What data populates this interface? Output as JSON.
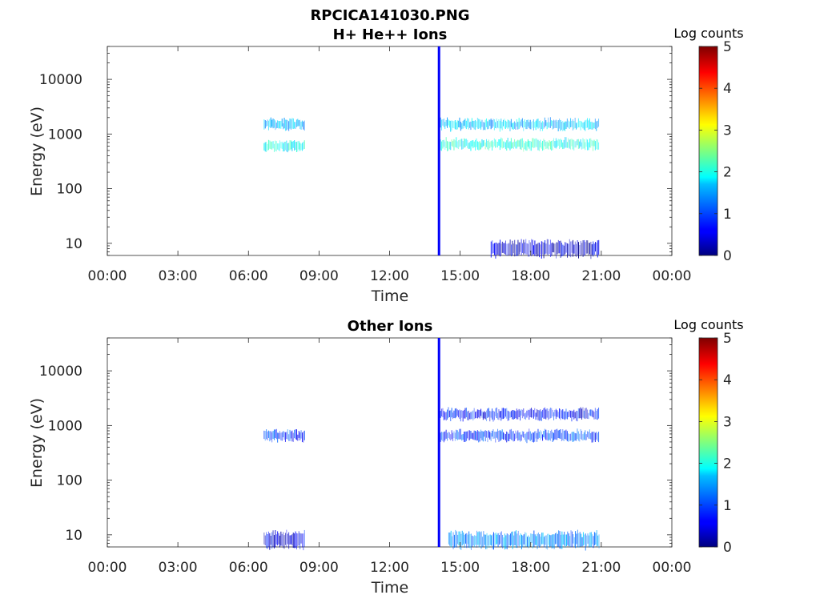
{
  "figure_title": "RPCICA141030.PNG",
  "panels": [
    {
      "id": "hplus",
      "title": "H+ He++ Ions",
      "ylabel": "Energy (eV)",
      "xlabel": "Time",
      "colorbar_label": "Log counts"
    },
    {
      "id": "other",
      "title": "Other Ions",
      "ylabel": "Energy (eV)",
      "xlabel": "Time",
      "colorbar_label": "Log counts"
    }
  ],
  "chart_data": [
    {
      "type": "heatmap",
      "title": "H+ He++ Ions",
      "xlabel": "Time",
      "ylabel": "Energy (eV)",
      "x_range_hours": [
        0,
        24
      ],
      "x_ticks": [
        "00:00",
        "03:00",
        "06:00",
        "09:00",
        "12:00",
        "15:00",
        "18:00",
        "21:00",
        "00:00"
      ],
      "y_scale": "log",
      "y_range_eV": [
        6,
        40000
      ],
      "y_ticks": [
        10,
        100,
        1000,
        10000
      ],
      "colorbar": {
        "label": "Log counts",
        "range": [
          0,
          5
        ],
        "ticks": [
          0,
          1,
          2,
          3,
          4,
          5
        ],
        "colormap": "jet"
      },
      "features": [
        {
          "t_start_h": 6.65,
          "t_end_h": 8.4,
          "energy_eV": 600,
          "log_counts": 1.9
        },
        {
          "t_start_h": 6.65,
          "t_end_h": 8.4,
          "energy_eV": 1500,
          "log_counts": 1.5
        },
        {
          "t_start_h": 14.15,
          "t_end_h": 20.9,
          "energy_eV": 650,
          "log_counts": 2.0
        },
        {
          "t_start_h": 14.15,
          "t_end_h": 20.9,
          "energy_eV": 1500,
          "log_counts": 1.6
        },
        {
          "t_start_h": 14.05,
          "t_end_h": 14.12,
          "energy_eV": "all",
          "log_counts": 0.6
        },
        {
          "t_start_h": 16.3,
          "t_end_h": 20.9,
          "energy_eV": 8,
          "log_counts": 0.4
        }
      ]
    },
    {
      "type": "heatmap",
      "title": "Other Ions",
      "xlabel": "Time",
      "ylabel": "Energy (eV)",
      "x_range_hours": [
        0,
        24
      ],
      "x_ticks": [
        "00:00",
        "03:00",
        "06:00",
        "09:00",
        "12:00",
        "15:00",
        "18:00",
        "21:00",
        "00:00"
      ],
      "y_scale": "log",
      "y_range_eV": [
        6,
        40000
      ],
      "y_ticks": [
        10,
        100,
        1000,
        10000
      ],
      "colorbar": {
        "label": "Log counts",
        "range": [
          0,
          5
        ],
        "ticks": [
          0,
          1,
          2,
          3,
          4,
          5
        ],
        "colormap": "jet"
      },
      "features": [
        {
          "t_start_h": 6.65,
          "t_end_h": 8.4,
          "energy_eV": 650,
          "log_counts": 0.9
        },
        {
          "t_start_h": 14.15,
          "t_end_h": 20.9,
          "energy_eV": 650,
          "log_counts": 0.9
        },
        {
          "t_start_h": 14.15,
          "t_end_h": 20.9,
          "energy_eV": 1600,
          "log_counts": 0.7
        },
        {
          "t_start_h": 14.05,
          "t_end_h": 14.12,
          "energy_eV": "all",
          "log_counts": 0.6
        },
        {
          "t_start_h": 6.65,
          "t_end_h": 8.4,
          "energy_eV": 8,
          "log_counts": 0.5
        },
        {
          "t_start_h": 14.5,
          "t_end_h": 20.9,
          "energy_eV": 8,
          "log_counts": 1.3
        }
      ]
    }
  ]
}
